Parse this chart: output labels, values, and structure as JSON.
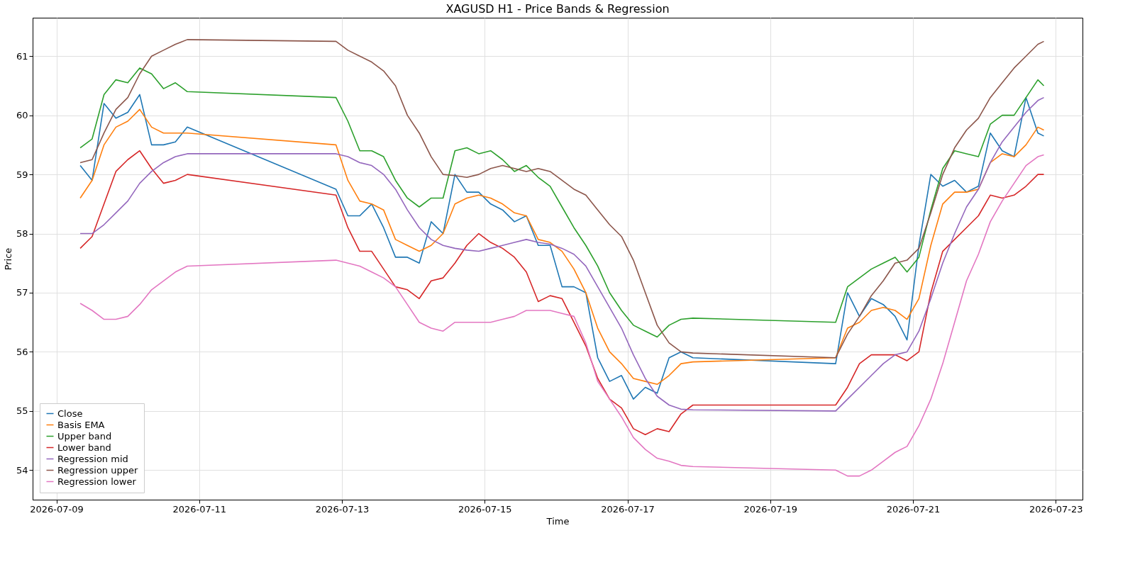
{
  "chart_data": {
    "type": "line",
    "title": "XAGUSD H1 - Price Bands & Regression",
    "xlabel": "Time",
    "ylabel": "Price",
    "x": [
      "2026-07-09T08:00",
      "2026-07-09T12:00",
      "2026-07-09T16:00",
      "2026-07-09T20:00",
      "2026-07-10T00:00",
      "2026-07-10T04:00",
      "2026-07-10T08:00",
      "2026-07-10T12:00",
      "2026-07-10T16:00",
      "2026-07-10T20:00",
      "2026-07-12T22:00",
      "2026-07-13T02:00",
      "2026-07-13T06:00",
      "2026-07-13T10:00",
      "2026-07-13T14:00",
      "2026-07-13T18:00",
      "2026-07-13T22:00",
      "2026-07-14T02:00",
      "2026-07-14T06:00",
      "2026-07-14T10:00",
      "2026-07-14T14:00",
      "2026-07-14T18:00",
      "2026-07-14T22:00",
      "2026-07-15T02:00",
      "2026-07-15T06:00",
      "2026-07-15T10:00",
      "2026-07-15T14:00",
      "2026-07-15T18:00",
      "2026-07-15T22:00",
      "2026-07-16T02:00",
      "2026-07-16T06:00",
      "2026-07-16T10:00",
      "2026-07-16T14:00",
      "2026-07-16T18:00",
      "2026-07-16T22:00",
      "2026-07-17T02:00",
      "2026-07-17T06:00",
      "2026-07-17T10:00",
      "2026-07-17T14:00",
      "2026-07-17T18:00",
      "2026-07-17T22:00",
      "2026-07-19T22:00",
      "2026-07-20T02:00",
      "2026-07-20T06:00",
      "2026-07-20T10:00",
      "2026-07-20T14:00",
      "2026-07-20T18:00",
      "2026-07-20T22:00",
      "2026-07-21T02:00",
      "2026-07-21T06:00",
      "2026-07-21T10:00",
      "2026-07-21T14:00",
      "2026-07-21T18:00",
      "2026-07-21T22:00",
      "2026-07-22T02:00",
      "2026-07-22T06:00",
      "2026-07-22T10:00",
      "2026-07-22T14:00",
      "2026-07-22T18:00",
      "2026-07-22T20:00"
    ],
    "series": [
      {
        "name": "Close",
        "color": "#1f77b4",
        "values": [
          59.15,
          58.9,
          60.2,
          59.95,
          60.05,
          60.35,
          59.5,
          59.5,
          59.55,
          59.8,
          58.75,
          58.3,
          58.3,
          58.5,
          58.1,
          57.6,
          57.6,
          57.5,
          58.2,
          58.0,
          59.0,
          58.7,
          58.7,
          58.5,
          58.4,
          58.2,
          58.3,
          57.8,
          57.8,
          57.1,
          57.1,
          57.0,
          55.9,
          55.5,
          55.6,
          55.2,
          55.4,
          55.3,
          55.9,
          56.0,
          55.9,
          55.8,
          57.0,
          56.6,
          56.9,
          56.8,
          56.6,
          56.2,
          57.8,
          59.0,
          58.8,
          58.9,
          58.7,
          58.8,
          59.7,
          59.4,
          59.3,
          60.3,
          59.7,
          59.65
        ]
      },
      {
        "name": "Basis EMA",
        "color": "#ff7f0e",
        "values": [
          58.6,
          58.9,
          59.5,
          59.8,
          59.9,
          60.1,
          59.8,
          59.7,
          59.7,
          59.7,
          59.5,
          58.9,
          58.55,
          58.5,
          58.4,
          57.9,
          57.8,
          57.7,
          57.8,
          58.0,
          58.5,
          58.6,
          58.65,
          58.6,
          58.5,
          58.35,
          58.3,
          57.9,
          57.85,
          57.7,
          57.4,
          57.0,
          56.4,
          56.0,
          55.8,
          55.55,
          55.5,
          55.45,
          55.6,
          55.8,
          55.83,
          55.9,
          56.4,
          56.5,
          56.7,
          56.75,
          56.7,
          56.55,
          56.9,
          57.8,
          58.5,
          58.7,
          58.7,
          58.75,
          59.2,
          59.35,
          59.3,
          59.5,
          59.8,
          59.75
        ]
      },
      {
        "name": "Upper band",
        "color": "#2ca02c",
        "values": [
          59.45,
          59.6,
          60.35,
          60.6,
          60.55,
          60.8,
          60.7,
          60.45,
          60.55,
          60.4,
          60.3,
          59.9,
          59.4,
          59.4,
          59.3,
          58.9,
          58.6,
          58.45,
          58.6,
          58.6,
          59.4,
          59.45,
          59.35,
          59.4,
          59.25,
          59.05,
          59.15,
          58.95,
          58.8,
          58.45,
          58.1,
          57.8,
          57.45,
          57.0,
          56.7,
          56.45,
          56.35,
          56.25,
          56.45,
          56.55,
          56.57,
          56.5,
          57.1,
          57.25,
          57.4,
          57.5,
          57.6,
          57.35,
          57.6,
          58.4,
          59.1,
          59.4,
          59.35,
          59.3,
          59.85,
          60.0,
          60.0,
          60.3,
          60.6,
          60.5
        ]
      },
      {
        "name": "Lower band",
        "color": "#d62728",
        "values": [
          57.75,
          57.95,
          58.5,
          59.05,
          59.25,
          59.4,
          59.1,
          58.85,
          58.9,
          59.0,
          58.65,
          58.1,
          57.7,
          57.7,
          57.4,
          57.1,
          57.05,
          56.9,
          57.2,
          57.25,
          57.5,
          57.8,
          58.0,
          57.85,
          57.75,
          57.6,
          57.35,
          56.85,
          56.95,
          56.9,
          56.5,
          56.1,
          55.55,
          55.2,
          55.05,
          54.7,
          54.6,
          54.7,
          54.65,
          54.95,
          55.1,
          55.1,
          55.4,
          55.8,
          55.95,
          55.95,
          55.95,
          55.85,
          56.0,
          57.0,
          57.7,
          57.9,
          58.1,
          58.3,
          58.65,
          58.6,
          58.65,
          58.8,
          59.0,
          59.0
        ]
      },
      {
        "name": "Regression mid",
        "color": "#9467bd",
        "values": [
          58.0,
          58.0,
          58.15,
          58.35,
          58.55,
          58.85,
          59.05,
          59.2,
          59.3,
          59.35,
          59.35,
          59.3,
          59.2,
          59.15,
          59.0,
          58.75,
          58.4,
          58.1,
          57.9,
          57.8,
          57.75,
          57.72,
          57.7,
          57.75,
          57.8,
          57.85,
          57.9,
          57.85,
          57.82,
          57.75,
          57.65,
          57.45,
          57.1,
          56.75,
          56.4,
          55.95,
          55.55,
          55.25,
          55.1,
          55.03,
          55.02,
          55.0,
          55.2,
          55.4,
          55.6,
          55.8,
          55.95,
          56.0,
          56.35,
          56.9,
          57.5,
          58.0,
          58.45,
          58.75,
          59.2,
          59.55,
          59.8,
          60.05,
          60.25,
          60.3
        ]
      },
      {
        "name": "Regression upper",
        "color": "#8c564b",
        "values": [
          59.2,
          59.25,
          59.7,
          60.1,
          60.3,
          60.7,
          61.0,
          61.1,
          61.2,
          61.28,
          61.25,
          61.1,
          61.0,
          60.9,
          60.75,
          60.5,
          60.0,
          59.7,
          59.3,
          59.0,
          58.98,
          58.95,
          59.0,
          59.1,
          59.15,
          59.1,
          59.05,
          59.1,
          59.05,
          58.9,
          58.75,
          58.65,
          58.4,
          58.15,
          57.95,
          57.55,
          57.0,
          56.45,
          56.15,
          56.0,
          55.98,
          55.9,
          56.3,
          56.6,
          56.95,
          57.2,
          57.5,
          57.55,
          57.75,
          58.35,
          59.0,
          59.45,
          59.75,
          59.95,
          60.3,
          60.55,
          60.8,
          61.0,
          61.2,
          61.25
        ]
      },
      {
        "name": "Regression lower",
        "color": "#e377c2",
        "values": [
          56.82,
          56.7,
          56.55,
          56.55,
          56.6,
          56.8,
          57.05,
          57.2,
          57.35,
          57.45,
          57.55,
          57.5,
          57.45,
          57.35,
          57.25,
          57.1,
          56.8,
          56.5,
          56.4,
          56.35,
          56.5,
          56.5,
          56.5,
          56.5,
          56.55,
          56.6,
          56.7,
          56.7,
          56.7,
          56.65,
          56.6,
          56.15,
          55.5,
          55.2,
          54.9,
          54.55,
          54.35,
          54.2,
          54.15,
          54.08,
          54.06,
          54.0,
          53.9,
          53.9,
          54.0,
          54.15,
          54.3,
          54.4,
          54.75,
          55.2,
          55.8,
          56.5,
          57.2,
          57.65,
          58.2,
          58.55,
          58.85,
          59.15,
          59.3,
          59.33
        ]
      }
    ],
    "xlim": [
      "2026-07-08T16:00",
      "2026-07-23T09:00"
    ],
    "xticks": [
      "2026-07-09",
      "2026-07-11",
      "2026-07-13",
      "2026-07-15",
      "2026-07-17",
      "2026-07-19",
      "2026-07-21",
      "2026-07-23"
    ],
    "ylim": [
      53.5,
      61.65
    ],
    "yticks": [
      54,
      55,
      56,
      57,
      58,
      59,
      60,
      61
    ],
    "grid": true,
    "legend": "bottom left",
    "line_style": "solid"
  }
}
